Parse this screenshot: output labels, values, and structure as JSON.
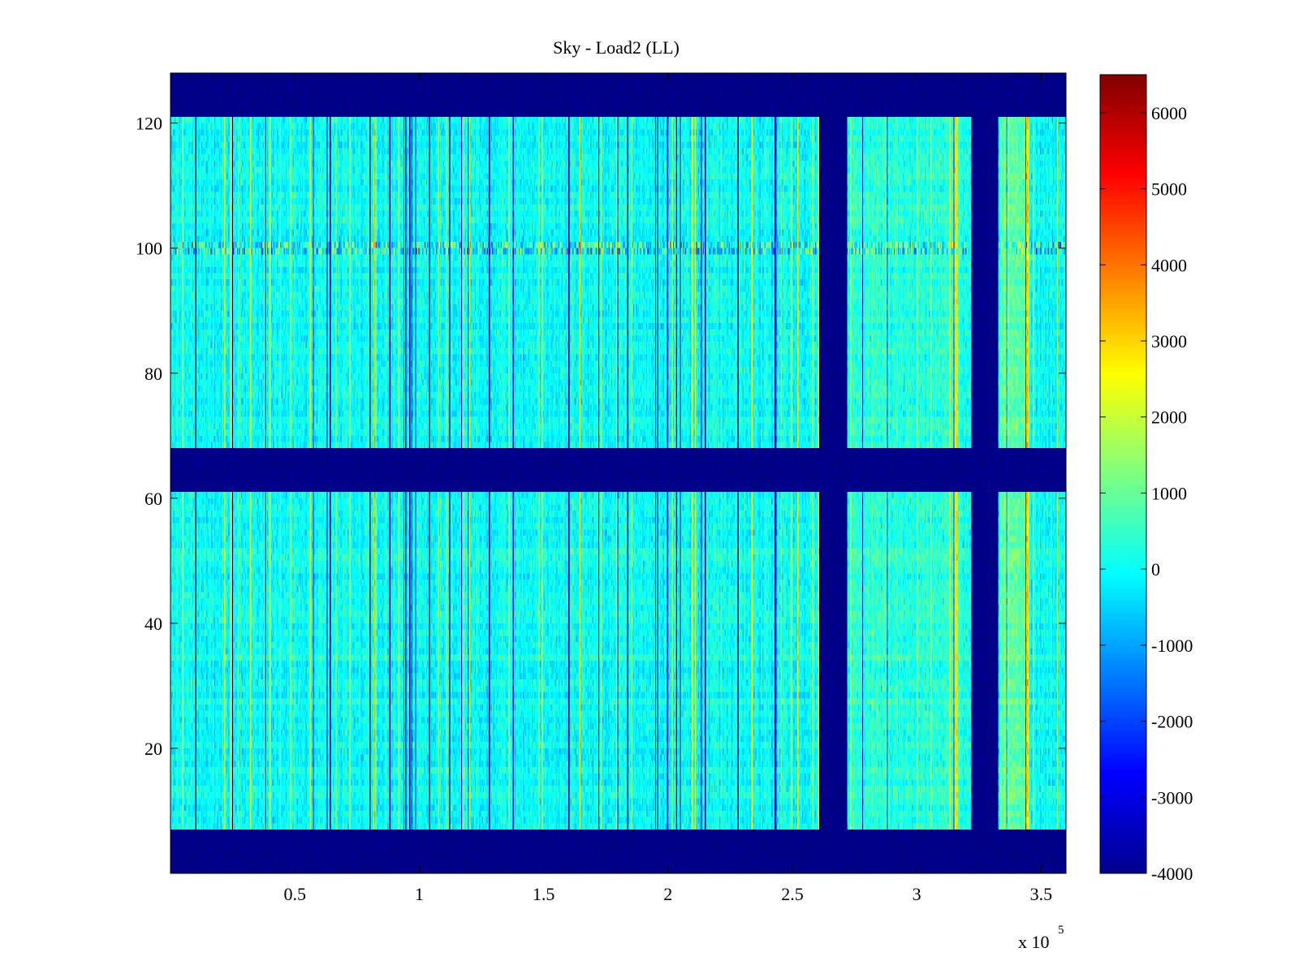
{
  "chart_data": {
    "type": "heatmap",
    "title": "Sky - Load2 (LL)",
    "xlabel": "",
    "ylabel": "",
    "x_exponent_label": "x 10",
    "x_exponent": "5",
    "xlim": [
      0,
      360000
    ],
    "ylim": [
      0,
      128
    ],
    "x_ticks": [
      {
        "value": 50000,
        "label": "0.5"
      },
      {
        "value": 100000,
        "label": "1"
      },
      {
        "value": 150000,
        "label": "1.5"
      },
      {
        "value": 200000,
        "label": "2"
      },
      {
        "value": 250000,
        "label": "2.5"
      },
      {
        "value": 300000,
        "label": "3"
      },
      {
        "value": 350000,
        "label": "3.5"
      }
    ],
    "y_ticks": [
      {
        "value": 20,
        "label": "20"
      },
      {
        "value": 40,
        "label": "40"
      },
      {
        "value": 60,
        "label": "60"
      },
      {
        "value": 80,
        "label": "80"
      },
      {
        "value": 100,
        "label": "100"
      },
      {
        "value": 120,
        "label": "120"
      }
    ],
    "colormap": "jet",
    "clim": [
      -4000,
      6500
    ],
    "colorbar_ticks": [
      {
        "value": 6000,
        "label": "6000"
      },
      {
        "value": 5000,
        "label": "5000"
      },
      {
        "value": 4000,
        "label": "4000"
      },
      {
        "value": 3000,
        "label": "3000"
      },
      {
        "value": 2000,
        "label": "2000"
      },
      {
        "value": 1000,
        "label": "1000"
      },
      {
        "value": 0,
        "label": "0"
      },
      {
        "value": -1000,
        "label": "-1000"
      },
      {
        "value": -2000,
        "label": "-2000"
      },
      {
        "value": -3000,
        "label": "-3000"
      },
      {
        "value": -4000,
        "label": "-4000"
      }
    ],
    "background_value": -4000,
    "typical_value": 0,
    "masked_row_bands": [
      [
        0,
        7
      ],
      [
        61,
        68
      ],
      [
        121,
        128
      ]
    ],
    "masked_column_bands": [
      [
        261000,
        272000
      ],
      [
        322000,
        333000
      ]
    ],
    "notable_rows": [
      99,
      100
    ],
    "notable_columns": [
      5000,
      10000,
      25000,
      32000,
      40000,
      48000,
      56000,
      64000,
      72000,
      80000,
      88000,
      96000,
      104000,
      112000,
      120000,
      128000,
      136000,
      148000,
      160000,
      172000,
      184000,
      196000,
      205000,
      215000,
      228000,
      243000,
      258000,
      344000
    ],
    "grid": false
  }
}
